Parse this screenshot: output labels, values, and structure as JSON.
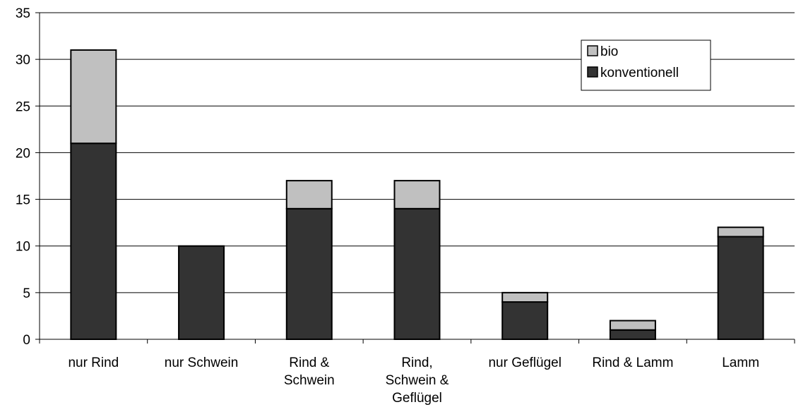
{
  "chart_data": {
    "type": "bar",
    "stacked": true,
    "categories": [
      [
        "nur Rind"
      ],
      [
        "nur Schwein"
      ],
      [
        "Rind &",
        "Schwein"
      ],
      [
        "Rind,",
        "Schwein &",
        "Geflügel"
      ],
      [
        "nur Geflügel"
      ],
      [
        "Rind & Lamm"
      ],
      [
        "Lamm"
      ]
    ],
    "series": [
      {
        "name": "konventionell",
        "color": "#333333",
        "values": [
          21,
          10,
          14,
          14,
          4,
          1,
          11
        ]
      },
      {
        "name": "bio",
        "color": "#c0c0c0",
        "values": [
          10,
          0,
          3,
          3,
          1,
          1,
          1
        ]
      }
    ],
    "ylim": [
      0,
      35
    ],
    "yticks": [
      0,
      5,
      10,
      15,
      20,
      25,
      30,
      35
    ],
    "grid": true,
    "legend": {
      "position": "top-right",
      "order": [
        "bio",
        "konventionell"
      ]
    },
    "title": "",
    "xlabel": "",
    "ylabel": ""
  }
}
